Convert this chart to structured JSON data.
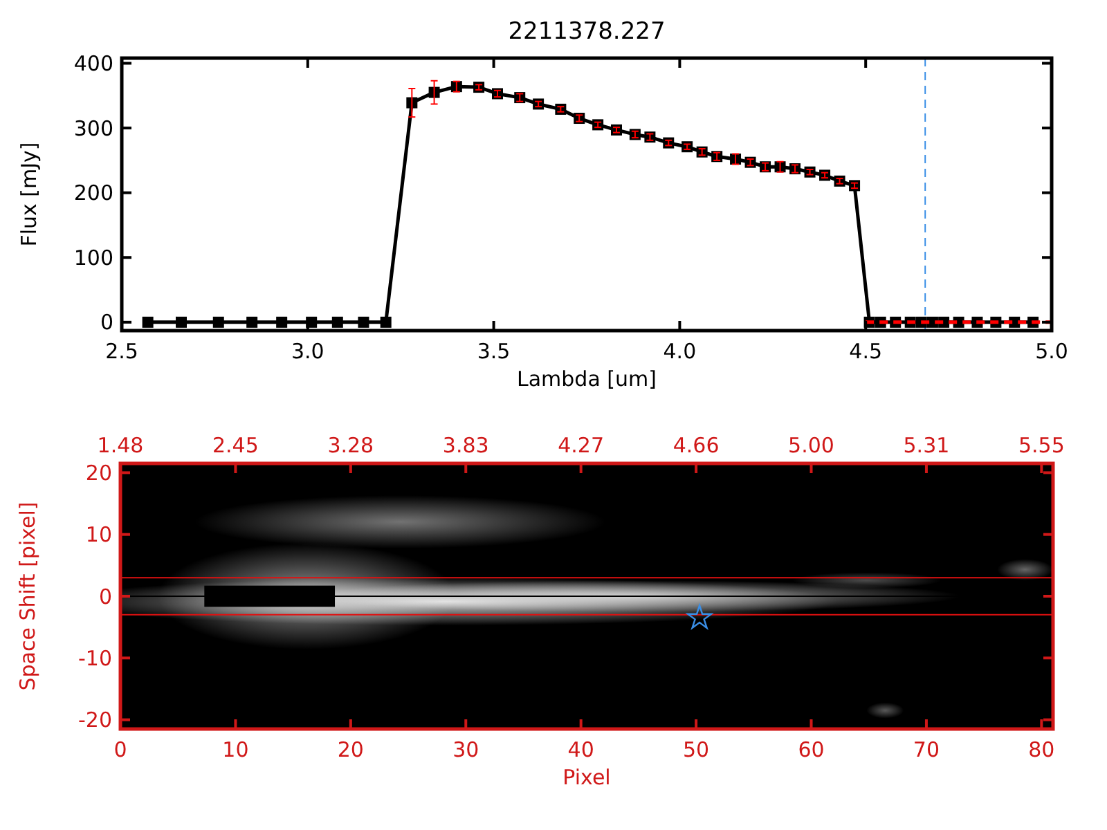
{
  "chart_data": [
    {
      "type": "line",
      "title": "2211378.227",
      "xlabel": "Lambda [um]",
      "ylabel": "Flux [mJy]",
      "xlim": [
        2.5,
        5.0
      ],
      "xticks": [
        {
          "value": 2.5,
          "label": "2.5"
        },
        {
          "value": 3,
          "label": "3.0"
        },
        {
          "value": 3.5,
          "label": "3.5"
        },
        {
          "value": 4,
          "label": "4.0"
        },
        {
          "value": 4.5,
          "label": "4.5"
        },
        {
          "value": 5,
          "label": "5.0"
        }
      ],
      "ylim": [
        -13,
        408
      ],
      "yticks": [
        0,
        100,
        200,
        300,
        400
      ],
      "marker": "square",
      "series": [
        {
          "color": "#000000",
          "x": [
            2.57,
            2.66,
            2.76,
            2.85,
            2.93,
            3.01,
            3.08,
            3.15,
            3.21,
            3.28,
            3.34,
            3.4,
            3.46,
            3.51,
            3.57,
            3.62,
            3.68,
            3.73,
            3.78,
            3.83,
            3.88,
            3.92,
            3.97,
            4.02,
            4.06,
            4.1,
            4.15,
            4.19,
            4.23,
            4.27,
            4.31,
            4.35,
            4.39,
            4.43,
            4.47,
            4.51,
            4.54,
            4.58,
            4.62,
            4.65,
            4.68,
            4.71,
            4.75,
            4.8,
            4.85,
            4.9,
            4.95
          ],
          "values": [
            0,
            0,
            0,
            0,
            0,
            0,
            0,
            0,
            0,
            339,
            355,
            364,
            363,
            353,
            347,
            337,
            329,
            315,
            305,
            297,
            290,
            286,
            277,
            271,
            263,
            256,
            252,
            247,
            240,
            240,
            237,
            232,
            227,
            218,
            211,
            0,
            0,
            0,
            0,
            0,
            0,
            0,
            0,
            0,
            0,
            0,
            0
          ],
          "errors": [
            null,
            null,
            null,
            null,
            null,
            null,
            null,
            null,
            null,
            22,
            18,
            8,
            4,
            5,
            6,
            4,
            4,
            5,
            4,
            4,
            5,
            5,
            4,
            4,
            5,
            6,
            8,
            5,
            6,
            8,
            6,
            4,
            4,
            4,
            4,
            null,
            null,
            null,
            null,
            null,
            null,
            null,
            null,
            null,
            null,
            null,
            null
          ]
        },
        {
          "type": "line",
          "color": "#ff0000",
          "line_style": "dashed",
          "marker": "none",
          "x": [
            4.5,
            5.0
          ],
          "values": [
            0,
            0
          ]
        }
      ],
      "ref_lines": [
        {
          "axis": "x",
          "value": 4.66,
          "color": "#3a8ee6",
          "line_style": "dashed"
        }
      ]
    },
    {
      "type": "scatter",
      "xlabel": "Pixel",
      "ylabel": "Space Shift [pixel]",
      "xlim": [
        0,
        81
      ],
      "xticks": [
        0,
        10,
        20,
        30,
        40,
        50,
        60,
        70,
        80
      ],
      "annotations": [
        "1.48",
        "2.45",
        "3.28",
        "3.83",
        "4.27",
        "4.66",
        "5.00",
        "5.31",
        "5.55"
      ],
      "ylim": [
        -21.5,
        21.5
      ],
      "yticks": [
        -20,
        -10,
        0,
        10,
        20
      ],
      "marker": "star",
      "series": [
        {
          "color": "#3a8ee6",
          "x": [
            50.3
          ],
          "values": [
            -3.5
          ]
        }
      ],
      "ref_lines": [
        {
          "axis": "y",
          "value": 3,
          "color": "#e01010"
        },
        {
          "axis": "y",
          "value": -3,
          "color": "#e01010"
        },
        {
          "axis": "y",
          "value": 0,
          "color": "#000000"
        }
      ]
    }
  ]
}
